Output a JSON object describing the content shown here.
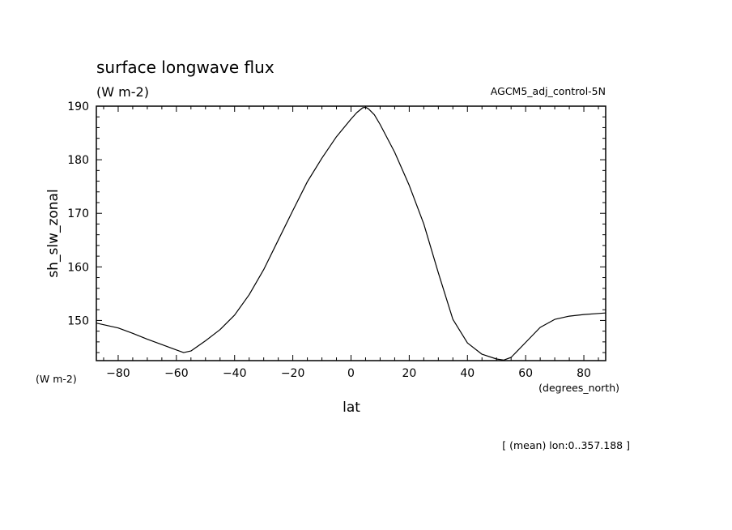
{
  "chart_data": {
    "type": "line",
    "title": "surface longwave flux",
    "units": "(W m-2)",
    "dataset": "AGCM5_adj_control-5N",
    "ylabel": "sh_slw_zonal",
    "y_units": "(W m-2)",
    "xlabel": "lat",
    "x_units": "(degrees_north)",
    "footnote": "[ (mean) lon:0..357.188 ]",
    "xlim": [
      -87.5,
      87.5
    ],
    "ylim": [
      142.5,
      190
    ],
    "x_ticks": [
      -80,
      -60,
      -40,
      -20,
      0,
      20,
      40,
      60,
      80
    ],
    "x_tick_labels": [
      "−80",
      "−60",
      "−40",
      "−20",
      "0",
      "20",
      "40",
      "60",
      "80"
    ],
    "y_ticks": [
      150,
      160,
      170,
      180,
      190
    ],
    "y_tick_labels": [
      "150",
      "160",
      "170",
      "180",
      "190"
    ],
    "grid": false,
    "line_color": "#000000",
    "series": [
      {
        "x": [
          -87.5,
          -85,
          -80,
          -75,
          -70,
          -65,
          -60,
          -57.5,
          -55,
          -50,
          -45,
          -40,
          -35,
          -30,
          -25,
          -20,
          -15,
          -10,
          -5,
          0,
          2,
          4,
          5,
          6,
          8,
          10,
          15,
          20,
          25,
          30,
          35,
          40,
          45,
          50,
          52.5,
          55,
          60,
          65,
          70,
          75,
          80,
          85,
          87.5
        ],
        "y": [
          149.5,
          149.2,
          148.6,
          147.6,
          146.5,
          145.5,
          144.5,
          144.0,
          144.3,
          146.2,
          148.3,
          151.0,
          154.8,
          159.5,
          165.0,
          170.5,
          175.9,
          180.3,
          184.3,
          187.6,
          188.8,
          189.7,
          189.8,
          189.5,
          188.4,
          186.6,
          181.4,
          175.2,
          168.0,
          158.9,
          150.2,
          145.8,
          143.7,
          142.8,
          142.6,
          143.1,
          145.9,
          148.7,
          150.2,
          150.8,
          151.1,
          151.3,
          151.4
        ]
      }
    ]
  }
}
